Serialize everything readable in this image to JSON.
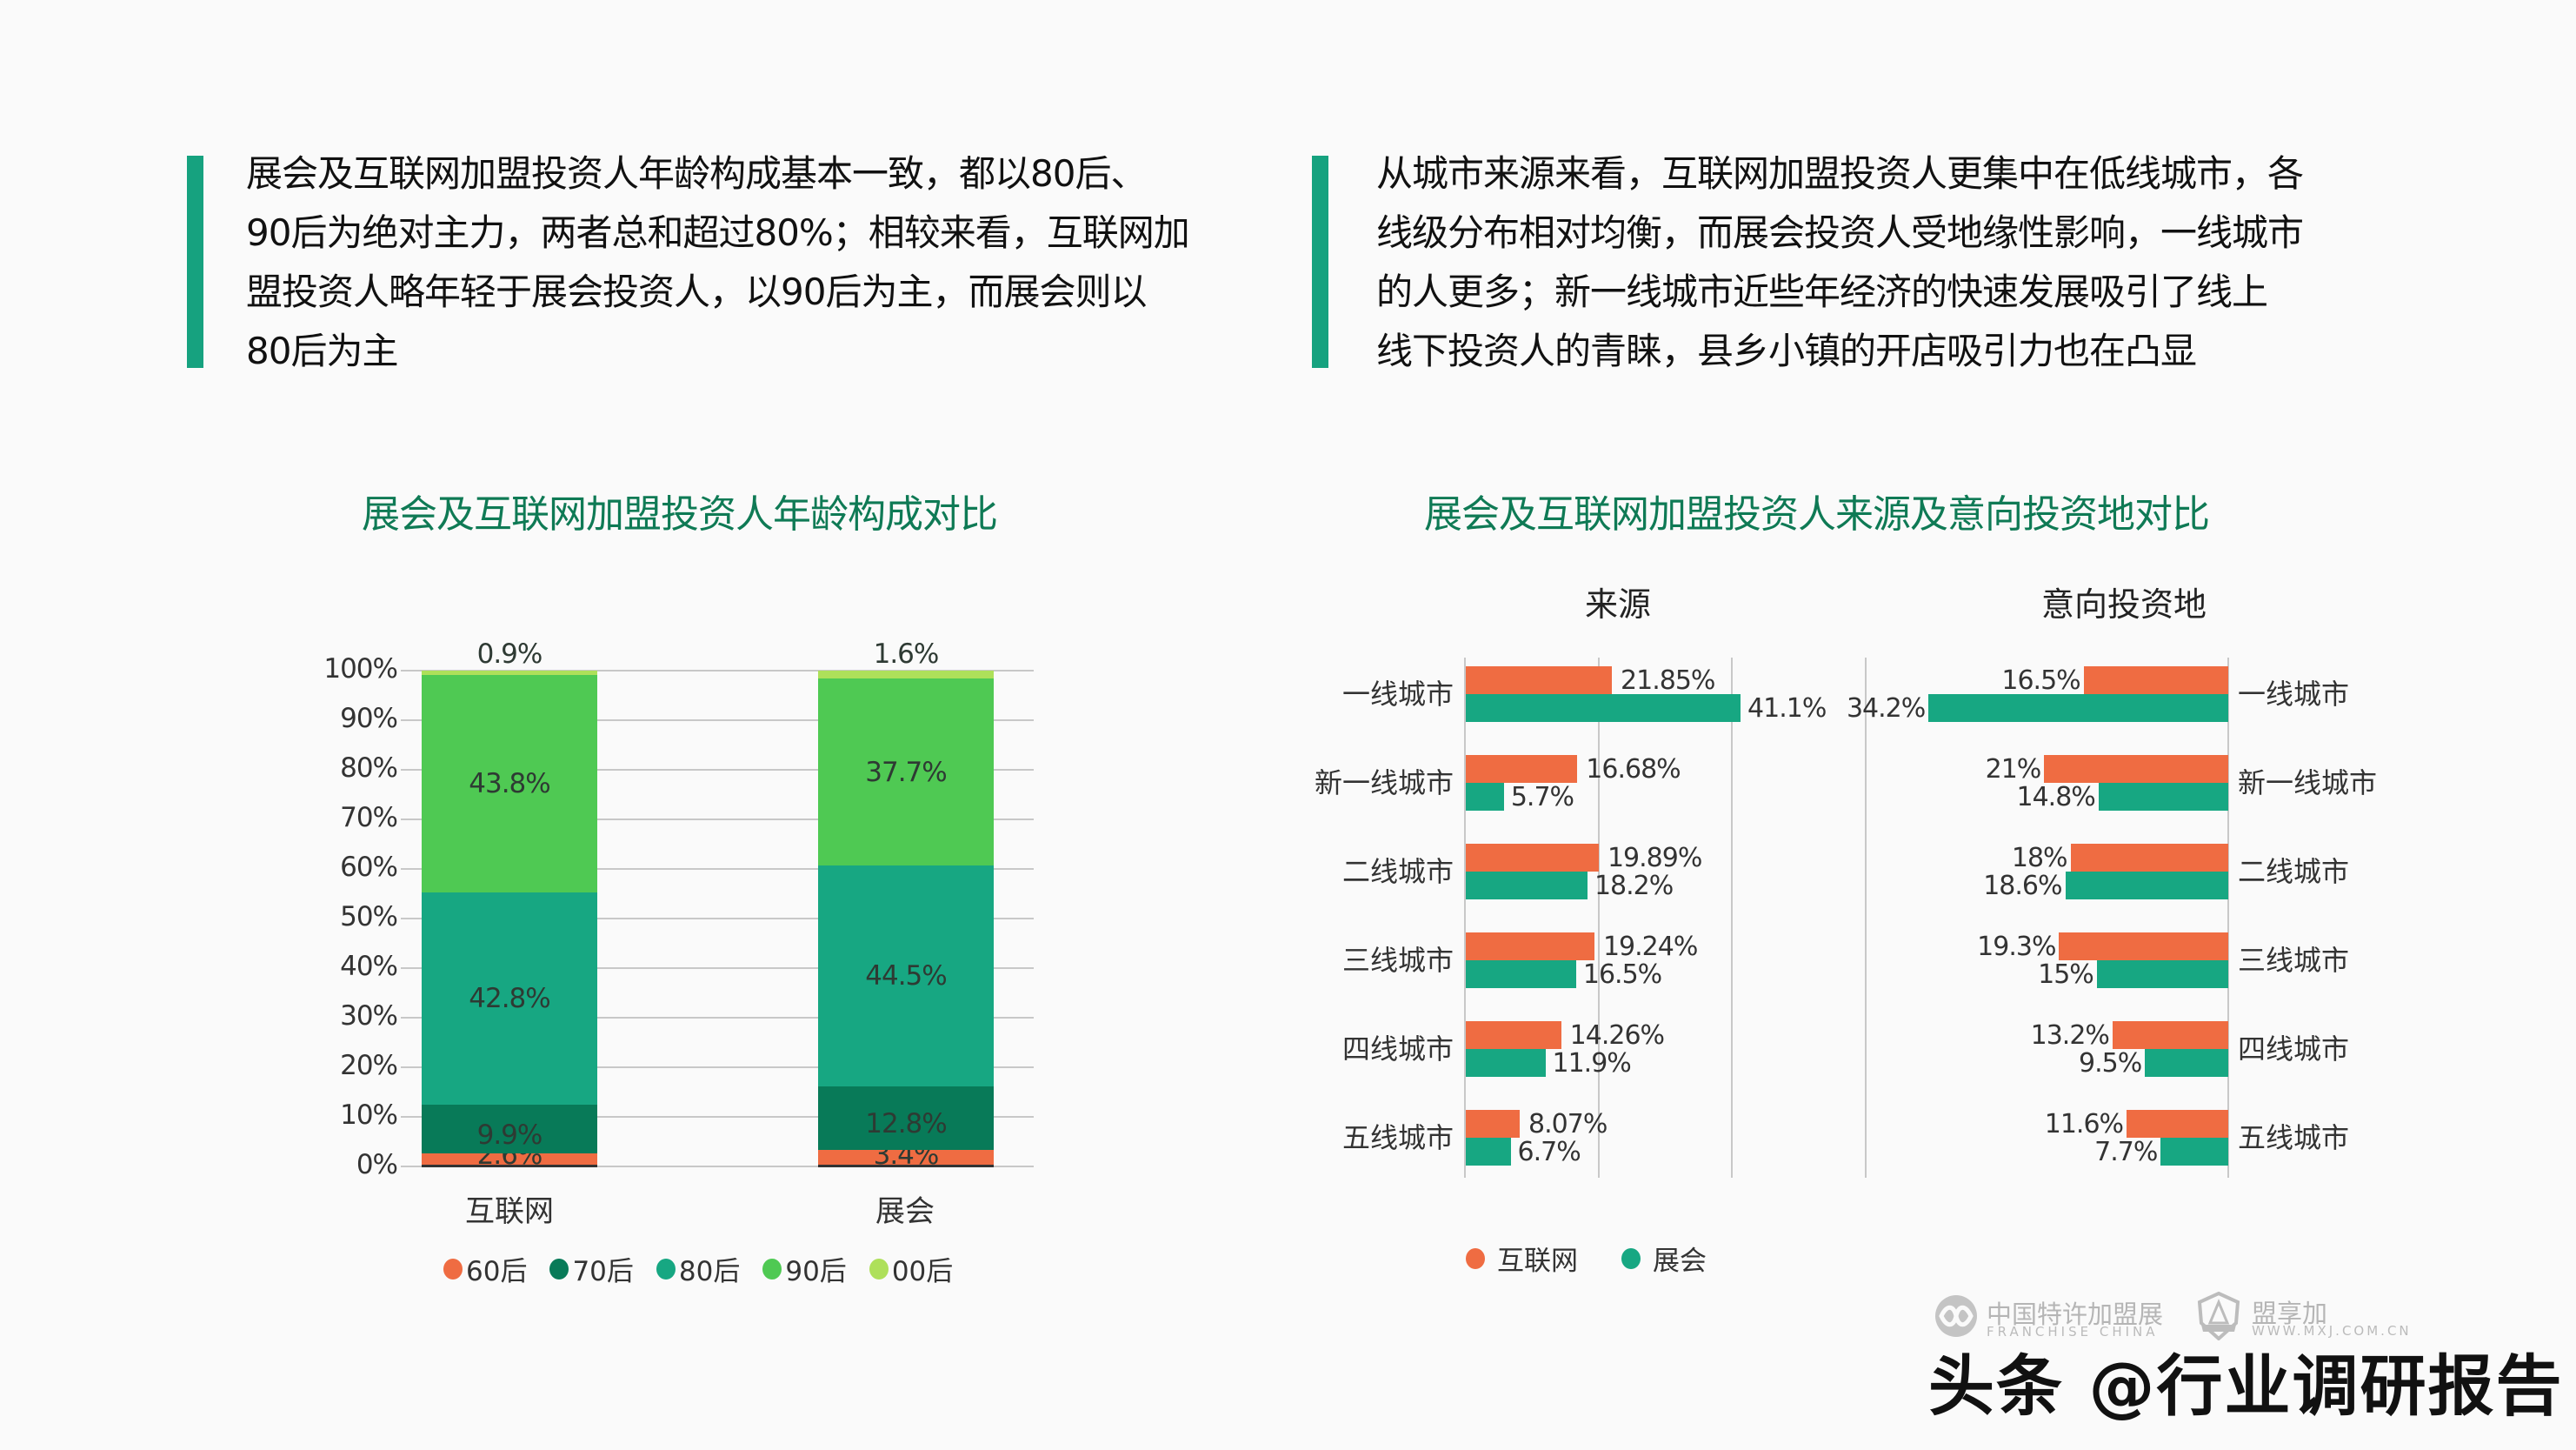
{
  "summaries": {
    "left": {
      "lines": [
        "展会及互联网加盟投资人年龄构成基本一致，都以80后、",
        "90后为绝对主力，两者总和超过80%；相较来看，互联网加",
        "盟投资人略年轻于展会投资人，以90后为主，而展会则以",
        "80后为主"
      ]
    },
    "right": {
      "lines": [
        "从城市来源来看，互联网加盟投资人更集中在低线城市，各",
        "线级分布相对均衡，而展会投资人受地缘性影响，一线城市",
        "的人更多；新一线城市近些年经济的快速发展吸引了线上",
        "线下投资人的青睐，县乡小镇的开店吸引力也在凸显"
      ]
    }
  },
  "colors": {
    "accent": "#16a27f",
    "title_green": "#0f7a55",
    "s60": "#ef6c42",
    "s70": "#087a58",
    "s80": "#17a782",
    "s90": "#4fc953",
    "s00": "#aee05a",
    "internet": "#ef6c42",
    "expo": "#17a782"
  },
  "age_chart": {
    "title": "展会及互联网加盟投资人年龄构成对比",
    "yticks": [
      "100%",
      "90%",
      "80%",
      "70%",
      "60%",
      "50%",
      "40%",
      "30%",
      "20%",
      "10%",
      "0%"
    ],
    "bars": [
      {
        "category": "互联网",
        "labels": {
          "s60": "2.6%",
          "s70": "9.9%",
          "s80": "42.8%",
          "s90": "43.8%",
          "s00": "0.9%"
        }
      },
      {
        "category": "展会",
        "labels": {
          "s60": "3.4%",
          "s70": "12.8%",
          "s80": "44.5%",
          "s90": "37.7%",
          "s00": "1.6%"
        }
      }
    ],
    "legend": [
      "60后",
      "70后",
      "80后",
      "90后",
      "00后"
    ]
  },
  "city_chart": {
    "title": "展会及互联网加盟投资人来源及意向投资地对比",
    "source_title": "来源",
    "target_title": "意向投资地",
    "cities": [
      "一线城市",
      "新一线城市",
      "二线城市",
      "三线城市",
      "四线城市",
      "五线城市"
    ],
    "source_labels": {
      "internet": [
        "21.85%",
        "16.68%",
        "19.89%",
        "19.24%",
        "14.26%",
        "8.07%"
      ],
      "expo": [
        "41.1%",
        "5.7%",
        "18.2%",
        "16.5%",
        "11.9%",
        "6.7%"
      ]
    },
    "target_labels": {
      "internet": [
        "16.5%",
        "21%",
        "18%",
        "19.3%",
        "13.2%",
        "11.6%"
      ],
      "expo": [
        "34.2%",
        "14.8%",
        "18.6%",
        "15%",
        "9.5%",
        "7.7%"
      ]
    },
    "legend": {
      "internet": "互联网",
      "expo": "展会"
    }
  },
  "watermark": {
    "logo1_cn": "中国特许加盟展",
    "logo1_en": "FRANCHISE CHINA",
    "logo2_cn": "盟享加",
    "logo2_en": "WWW.MXJ.COM.CN",
    "main": "头条 @行业调研报告"
  },
  "chart_data": [
    {
      "type": "bar",
      "stacked": true,
      "title": "展会及互联网加盟投资人年龄构成对比",
      "categories": [
        "互联网",
        "展会"
      ],
      "series": [
        {
          "name": "60后",
          "values": [
            2.6,
            3.4
          ]
        },
        {
          "name": "70后",
          "values": [
            9.9,
            12.8
          ]
        },
        {
          "name": "80后",
          "values": [
            42.8,
            44.5
          ]
        },
        {
          "name": "90后",
          "values": [
            43.8,
            37.7
          ]
        },
        {
          "name": "00后",
          "values": [
            0.9,
            1.6
          ]
        }
      ],
      "xlabel": "",
      "ylabel": "",
      "ylim": [
        0,
        100
      ],
      "yticks": [
        0,
        10,
        20,
        30,
        40,
        50,
        60,
        70,
        80,
        90,
        100
      ],
      "grid": true,
      "legend_position": "bottom"
    },
    {
      "type": "bar",
      "orientation": "horizontal",
      "title": "来源",
      "categories": [
        "一线城市",
        "新一线城市",
        "二线城市",
        "三线城市",
        "四线城市",
        "五线城市"
      ],
      "series": [
        {
          "name": "互联网",
          "values": [
            21.85,
            16.68,
            19.89,
            19.24,
            14.26,
            8.07
          ]
        },
        {
          "name": "展会",
          "values": [
            41.1,
            5.7,
            18.2,
            16.5,
            11.9,
            6.7
          ]
        }
      ],
      "xlim": [
        0,
        45
      ],
      "grid": true,
      "legend_position": "bottom"
    },
    {
      "type": "bar",
      "orientation": "horizontal",
      "direction": "right-to-left",
      "title": "意向投资地",
      "categories": [
        "一线城市",
        "新一线城市",
        "二线城市",
        "三线城市",
        "四线城市",
        "五线城市"
      ],
      "series": [
        {
          "name": "互联网",
          "values": [
            16.5,
            21,
            18,
            19.3,
            13.2,
            11.6
          ]
        },
        {
          "name": "展会",
          "values": [
            34.2,
            14.8,
            18.6,
            15,
            9.5,
            7.7
          ]
        }
      ],
      "xlim": [
        0,
        41
      ],
      "grid": true,
      "legend_position": "bottom"
    }
  ]
}
